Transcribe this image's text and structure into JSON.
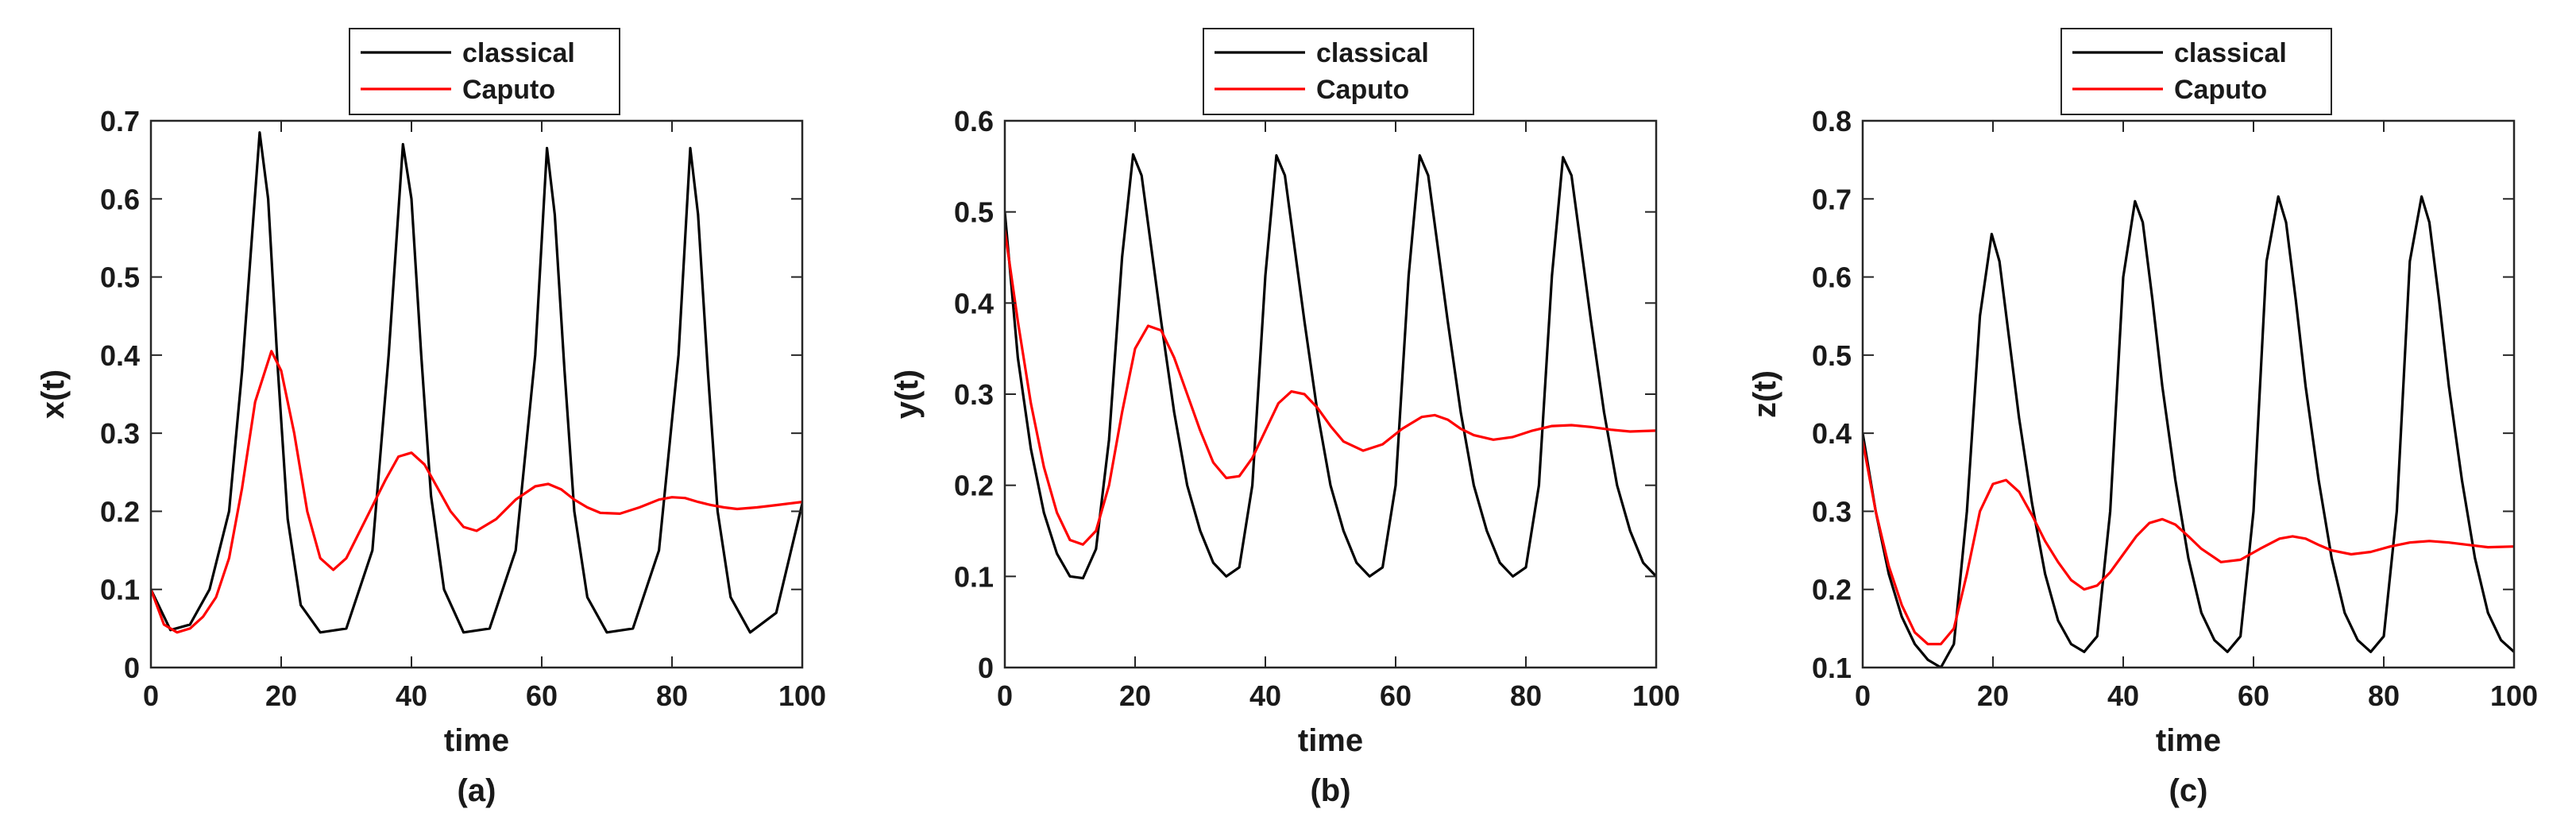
{
  "chart_data": [
    {
      "type": "line",
      "panel": "(a)",
      "xlabel": "time",
      "ylabel": "x(t)",
      "xlim": [
        0,
        100
      ],
      "ylim": [
        0,
        0.7
      ],
      "xticks": [
        "0",
        "20",
        "40",
        "60",
        "80",
        "100"
      ],
      "yticks": [
        "0",
        "0.1",
        "0.2",
        "0.3",
        "0.4",
        "0.5",
        "0.6",
        "0.7"
      ],
      "legend": "top-center-outside",
      "grid": false,
      "series": [
        {
          "name": "classical",
          "color": "#000000",
          "x": [
            0,
            3,
            6,
            9,
            12,
            14,
            15.5,
            16.7,
            18,
            19.5,
            21,
            23,
            26,
            30,
            34,
            36.5,
            38.7,
            40,
            41.5,
            43,
            45,
            48,
            52,
            56,
            59,
            60.8,
            62,
            63.5,
            65,
            67,
            70,
            74,
            78,
            81,
            82.8,
            84,
            85.5,
            87,
            89,
            92,
            96,
            100
          ],
          "y": [
            0.1,
            0.048,
            0.055,
            0.1,
            0.2,
            0.38,
            0.55,
            0.685,
            0.6,
            0.38,
            0.19,
            0.08,
            0.045,
            0.05,
            0.15,
            0.4,
            0.67,
            0.6,
            0.4,
            0.22,
            0.1,
            0.045,
            0.05,
            0.15,
            0.4,
            0.665,
            0.58,
            0.38,
            0.2,
            0.09,
            0.045,
            0.05,
            0.15,
            0.4,
            0.665,
            0.58,
            0.38,
            0.2,
            0.09,
            0.045,
            0.07,
            0.21
          ]
        },
        {
          "name": "Caputo",
          "color": "#ff0000",
          "x": [
            0,
            2,
            4,
            6,
            8,
            10,
            12,
            14,
            16,
            18.5,
            20,
            22,
            24,
            26,
            28,
            30,
            33,
            36,
            38,
            40,
            42,
            44,
            46,
            48,
            50,
            53,
            56,
            59,
            61,
            63,
            65,
            67,
            69,
            72,
            75,
            78,
            80,
            82,
            84,
            86,
            88,
            90,
            93,
            96,
            100
          ],
          "y": [
            0.1,
            0.055,
            0.045,
            0.05,
            0.065,
            0.09,
            0.14,
            0.23,
            0.34,
            0.405,
            0.38,
            0.3,
            0.2,
            0.14,
            0.125,
            0.14,
            0.19,
            0.24,
            0.27,
            0.275,
            0.26,
            0.23,
            0.2,
            0.18,
            0.175,
            0.19,
            0.215,
            0.232,
            0.235,
            0.228,
            0.215,
            0.205,
            0.198,
            0.197,
            0.205,
            0.215,
            0.218,
            0.217,
            0.212,
            0.208,
            0.205,
            0.203,
            0.205,
            0.208,
            0.212
          ]
        }
      ]
    },
    {
      "type": "line",
      "panel": "(b)",
      "xlabel": "time",
      "ylabel": "y(t)",
      "xlim": [
        0,
        100
      ],
      "ylim": [
        0,
        0.6
      ],
      "xticks": [
        "0",
        "20",
        "40",
        "60",
        "80",
        "100"
      ],
      "yticks": [
        "0",
        "0.1",
        "0.2",
        "0.3",
        "0.4",
        "0.5",
        "0.6"
      ],
      "legend": "top-center-outside",
      "grid": false,
      "series": [
        {
          "name": "classical",
          "color": "#000000",
          "x": [
            0,
            2,
            4,
            6,
            8,
            10,
            12,
            14,
            16,
            18,
            19.7,
            21,
            22.5,
            24,
            26,
            28,
            30,
            32,
            34,
            36,
            38,
            40,
            41.7,
            43,
            44.5,
            46,
            48,
            50,
            52,
            54,
            56,
            58,
            60,
            62,
            63.7,
            65,
            66.5,
            68,
            70,
            72,
            74,
            76,
            78,
            80,
            82,
            84,
            85.7,
            87,
            88.5,
            90,
            92,
            94,
            96,
            98,
            100
          ],
          "y": [
            0.5,
            0.34,
            0.24,
            0.17,
            0.125,
            0.1,
            0.098,
            0.13,
            0.25,
            0.45,
            0.563,
            0.54,
            0.46,
            0.38,
            0.28,
            0.2,
            0.15,
            0.115,
            0.1,
            0.11,
            0.2,
            0.43,
            0.562,
            0.54,
            0.46,
            0.38,
            0.28,
            0.2,
            0.15,
            0.115,
            0.1,
            0.11,
            0.2,
            0.43,
            0.562,
            0.54,
            0.46,
            0.38,
            0.28,
            0.2,
            0.15,
            0.115,
            0.1,
            0.11,
            0.2,
            0.43,
            0.56,
            0.54,
            0.46,
            0.38,
            0.28,
            0.2,
            0.15,
            0.115,
            0.1
          ]
        },
        {
          "name": "Caputo",
          "color": "#ff0000",
          "x": [
            0,
            2,
            4,
            6,
            8,
            10,
            12,
            14,
            16,
            18,
            20,
            22,
            24,
            26,
            28,
            30,
            32,
            34,
            36,
            38,
            40,
            42,
            44,
            46,
            48,
            50,
            52,
            55,
            58,
            61,
            64,
            66,
            68,
            70,
            72,
            75,
            78,
            81,
            84,
            87,
            90,
            93,
            96,
            100
          ],
          "y": [
            0.48,
            0.38,
            0.29,
            0.22,
            0.17,
            0.14,
            0.135,
            0.15,
            0.2,
            0.28,
            0.35,
            0.375,
            0.37,
            0.34,
            0.3,
            0.26,
            0.225,
            0.208,
            0.21,
            0.23,
            0.26,
            0.29,
            0.303,
            0.3,
            0.285,
            0.265,
            0.248,
            0.238,
            0.245,
            0.262,
            0.275,
            0.277,
            0.272,
            0.262,
            0.255,
            0.25,
            0.253,
            0.26,
            0.265,
            0.266,
            0.264,
            0.261,
            0.259,
            0.26
          ]
        }
      ]
    },
    {
      "type": "line",
      "panel": "(c)",
      "xlabel": "time",
      "ylabel": "z(t)",
      "xlim": [
        0,
        100
      ],
      "ylim": [
        0.1,
        0.8
      ],
      "xticks": [
        "0",
        "20",
        "40",
        "60",
        "80",
        "100"
      ],
      "yticks": [
        "0.1",
        "0.2",
        "0.3",
        "0.4",
        "0.5",
        "0.6",
        "0.7",
        "0.8"
      ],
      "legend": "top-center-outside",
      "grid": false,
      "series": [
        {
          "name": "classical",
          "color": "#000000",
          "x": [
            0,
            2,
            4,
            6,
            8,
            10,
            12,
            14,
            16,
            18,
            19.8,
            21,
            22.5,
            24,
            26,
            28,
            30,
            32,
            34,
            36,
            38,
            40,
            41.8,
            43,
            44.5,
            46,
            48,
            50,
            52,
            54,
            56,
            58,
            60,
            62,
            63.8,
            65,
            66.5,
            68,
            70,
            72,
            74,
            76,
            78,
            80,
            82,
            84,
            85.8,
            87,
            88.5,
            90,
            92,
            94,
            96,
            98,
            100
          ],
          "y": [
            0.4,
            0.3,
            0.22,
            0.165,
            0.13,
            0.11,
            0.1,
            0.13,
            0.3,
            0.55,
            0.655,
            0.62,
            0.52,
            0.42,
            0.31,
            0.22,
            0.16,
            0.13,
            0.12,
            0.14,
            0.3,
            0.6,
            0.697,
            0.67,
            0.57,
            0.46,
            0.34,
            0.24,
            0.17,
            0.135,
            0.12,
            0.14,
            0.3,
            0.62,
            0.703,
            0.67,
            0.57,
            0.46,
            0.34,
            0.24,
            0.17,
            0.135,
            0.12,
            0.14,
            0.3,
            0.62,
            0.703,
            0.67,
            0.57,
            0.46,
            0.34,
            0.24,
            0.17,
            0.135,
            0.12
          ]
        },
        {
          "name": "Caputo",
          "color": "#ff0000",
          "x": [
            0,
            2,
            4,
            6,
            8,
            10,
            12,
            14,
            16,
            18,
            20,
            22,
            24,
            26,
            28,
            30,
            32,
            34,
            36,
            38,
            40,
            42,
            44,
            46,
            48,
            50,
            52,
            55,
            58,
            61,
            64,
            66,
            68,
            70,
            72,
            75,
            78,
            81,
            84,
            87,
            90,
            93,
            96,
            100
          ],
          "y": [
            0.39,
            0.3,
            0.23,
            0.18,
            0.145,
            0.13,
            0.13,
            0.15,
            0.22,
            0.3,
            0.335,
            0.34,
            0.325,
            0.295,
            0.262,
            0.235,
            0.212,
            0.2,
            0.205,
            0.222,
            0.245,
            0.268,
            0.285,
            0.29,
            0.283,
            0.268,
            0.252,
            0.235,
            0.238,
            0.252,
            0.265,
            0.268,
            0.265,
            0.257,
            0.25,
            0.245,
            0.248,
            0.255,
            0.26,
            0.262,
            0.26,
            0.257,
            0.254,
            0.255
          ]
        }
      ]
    }
  ]
}
